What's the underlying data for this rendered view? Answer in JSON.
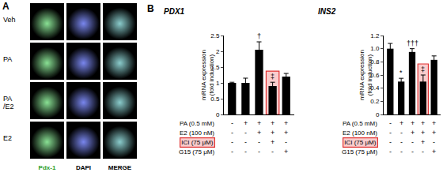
{
  "panel_labels": [
    "A",
    "B"
  ],
  "panel_a": {
    "rows": [
      [
        "Veh"
      ],
      [
        "PA"
      ],
      [
        "PA",
        "/E2"
      ],
      [
        "E2"
      ]
    ],
    "columns": [
      "Pdx-1",
      "DAPI",
      "MERGE"
    ]
  },
  "chart_data": [
    {
      "type": "bar",
      "title": "PDX1",
      "ylabel": [
        "mRNA expression",
        "(fold induction)"
      ],
      "categories": [
        null,
        null,
        null,
        null,
        null
      ],
      "values": [
        1.0,
        1.0,
        2.05,
        0.9,
        1.2
      ],
      "errors": [
        0.02,
        0.15,
        0.25,
        0.12,
        0.1
      ],
      "marks": [
        null,
        null,
        "†",
        "‡",
        null
      ],
      "color": "#000000",
      "ylim": [
        0,
        2.5
      ],
      "yticks": [
        0,
        0.5,
        1,
        1.5,
        2,
        2.5
      ],
      "tick_labels": "y",
      "highlight_index": 3,
      "conditions": [
        {
          "label": "PA (0.5 mM)",
          "values": [
            "-",
            "+",
            "+",
            "+",
            "+"
          ]
        },
        {
          "label": "E2 (100 nM)",
          "values": [
            "-",
            "-",
            "+",
            "+",
            "+"
          ]
        },
        {
          "label": "ICI (75 μM)",
          "values": [
            "-",
            "-",
            "-",
            "+",
            "-"
          ],
          "highlight": true
        },
        {
          "label": "G15 (75 μM)",
          "values": [
            "-",
            "-",
            "-",
            "-",
            "+"
          ]
        }
      ]
    },
    {
      "type": "bar",
      "title": "INS2",
      "ylabel": [
        "mRNA expression",
        "(fold induction)"
      ],
      "categories": [
        null,
        null,
        null,
        null,
        null
      ],
      "values": [
        1.0,
        0.5,
        0.95,
        0.5,
        0.83
      ],
      "errors": [
        0.08,
        0.05,
        0.05,
        0.1,
        0.06
      ],
      "marks": [
        null,
        "*",
        "†††",
        "‡",
        null
      ],
      "color": "#000000",
      "ylim": [
        0,
        1.2
      ],
      "yticks": [
        0,
        0.2,
        0.4,
        0.6,
        0.8,
        {
          "value": 1,
          "label": "1.0"
        },
        1.2
      ],
      "tick_labels": "y",
      "highlight_index": 3,
      "conditions": [
        {
          "label": "PA (0.5 mM)",
          "values": [
            "-",
            "+",
            "+",
            "+",
            "+"
          ]
        },
        {
          "label": "E2 (100 nM)",
          "values": [
            "-",
            "-",
            "+",
            "+",
            "+"
          ]
        },
        {
          "label": "ICI (75 μM)",
          "values": [
            "-",
            "-",
            "-",
            "+",
            "-"
          ],
          "highlight": true
        },
        {
          "label": "G15 (75 μM)",
          "values": [
            "-",
            "-",
            "-",
            "-",
            "+"
          ]
        }
      ]
    }
  ]
}
